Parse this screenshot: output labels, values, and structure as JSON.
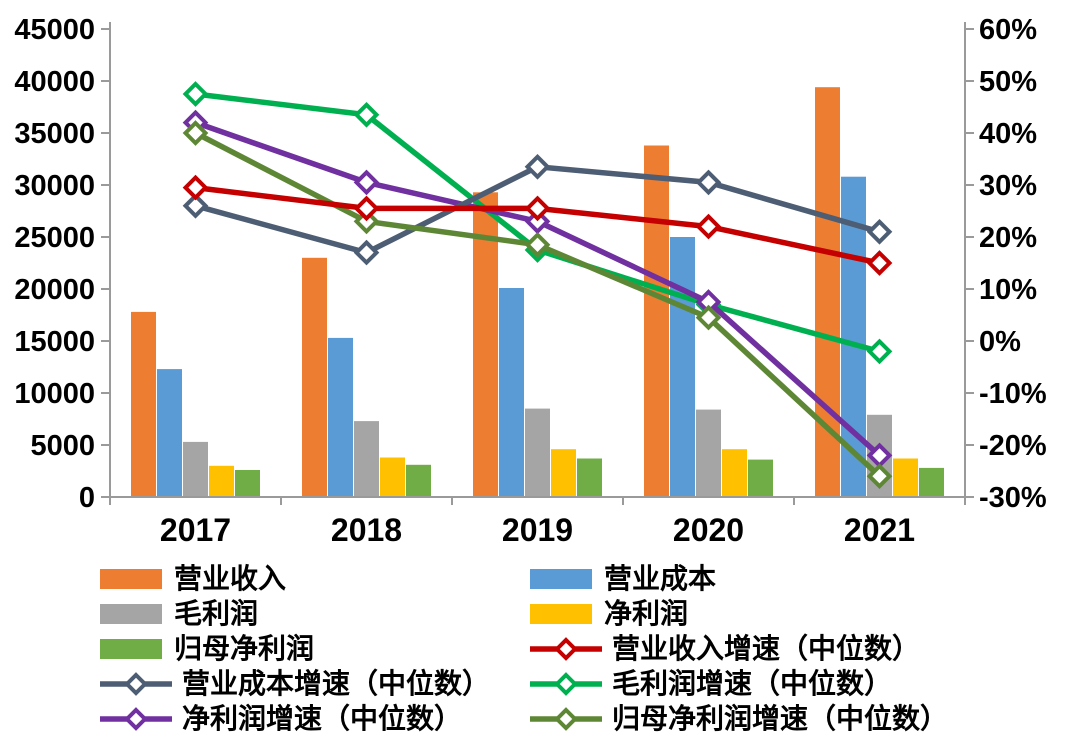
{
  "chart_data": {
    "type": "combo-bar-line",
    "categories": [
      "2017",
      "2018",
      "2019",
      "2020",
      "2021"
    ],
    "bar_series": [
      {
        "name": "营业收入",
        "color": "#ED7D31",
        "values": [
          17800,
          23000,
          29300,
          33800,
          39400
        ]
      },
      {
        "name": "营业成本",
        "color": "#5B9BD5",
        "values": [
          12300,
          15300,
          20100,
          25000,
          30800
        ]
      },
      {
        "name": "毛利润",
        "color": "#A5A5A5",
        "values": [
          5300,
          7300,
          8500,
          8400,
          7900
        ]
      },
      {
        "name": "净利润",
        "color": "#FFC000",
        "values": [
          3000,
          3800,
          4600,
          4600,
          3700
        ]
      },
      {
        "name": "归母净利润",
        "color": "#70AD47",
        "values": [
          2600,
          3100,
          3700,
          3600,
          2800
        ]
      }
    ],
    "line_series": [
      {
        "name": "营业收入增速（中位数）",
        "color": "#C40000",
        "values": [
          29.5,
          25.5,
          25.5,
          22,
          15
        ]
      },
      {
        "name": "营业成本增速（中位数）",
        "color": "#4D5D73",
        "values": [
          26,
          17,
          33.5,
          30.5,
          21
        ]
      },
      {
        "name": "毛利润增速（中位数）",
        "color": "#00B050",
        "values": [
          47.5,
          43.5,
          17.5,
          7,
          -2
        ]
      },
      {
        "name": "净利润增速（中位数）",
        "color": "#7030A0",
        "values": [
          42,
          30.5,
          23,
          7.5,
          -22
        ]
      },
      {
        "name": "归母净利润增速（中位数）",
        "color": "#5E8735",
        "values": [
          40,
          23,
          18.5,
          4.5,
          -26
        ]
      }
    ],
    "line_draw_order": [
      2,
      3,
      1,
      4,
      0
    ],
    "left_axis": {
      "min": 0,
      "max": 45000,
      "step": 5000,
      "tick_labels": [
        "0",
        "5000",
        "10000",
        "15000",
        "20000",
        "25000",
        "30000",
        "35000",
        "40000",
        "45000"
      ]
    },
    "right_axis": {
      "min": -30,
      "max": 60,
      "step": 10,
      "tick_labels": [
        "-30%",
        "-20%",
        "-10%",
        "0%",
        "10%",
        "20%",
        "30%",
        "40%",
        "50%",
        "60%"
      ]
    },
    "grid": "off",
    "legend_position": "bottom"
  },
  "legend": {
    "items": [
      {
        "type": "bar",
        "series": "bar.0",
        "label": "营业收入",
        "color": "#ED7D31"
      },
      {
        "type": "bar",
        "series": "bar.1",
        "label": "营业成本",
        "color": "#5B9BD5"
      },
      {
        "type": "bar",
        "series": "bar.2",
        "label": "毛利润",
        "color": "#A5A5A5"
      },
      {
        "type": "bar",
        "series": "bar.3",
        "label": "净利润",
        "color": "#FFC000"
      },
      {
        "type": "bar",
        "series": "bar.4",
        "label": "归母净利润",
        "color": "#70AD47"
      },
      {
        "type": "line",
        "series": "line.0",
        "label": "营业收入增速（中位数）",
        "color": "#C40000"
      },
      {
        "type": "line",
        "series": "line.1",
        "label": "营业成本增速（中位数）",
        "color": "#4D5D73"
      },
      {
        "type": "line",
        "series": "line.2",
        "label": "毛利润增速（中位数）",
        "color": "#00B050"
      },
      {
        "type": "line",
        "series": "line.3",
        "label": "净利润增速（中位数）",
        "color": "#7030A0"
      },
      {
        "type": "line",
        "series": "line.4",
        "label": "归母净利润增速（中位数）",
        "color": "#5E8735"
      }
    ]
  },
  "style": {
    "axis_line_color": "#9a9a9a",
    "text_color": "#000000",
    "background": "#ffffff"
  }
}
